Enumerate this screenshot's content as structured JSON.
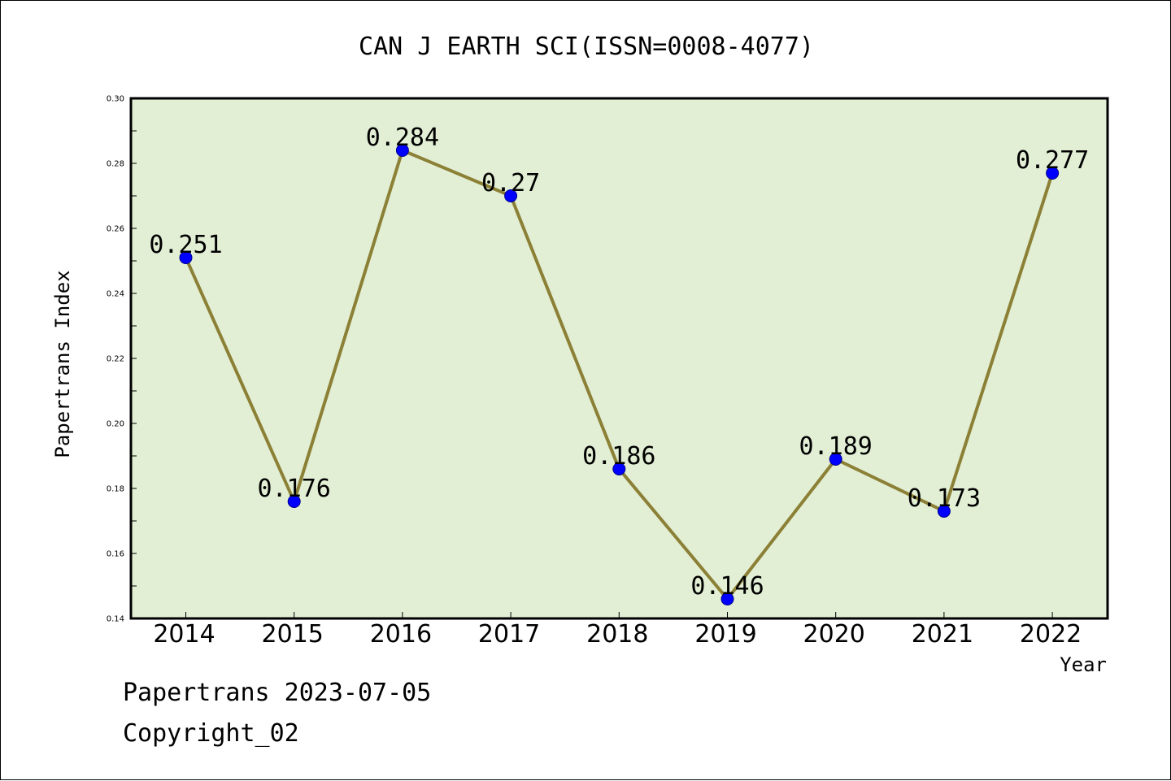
{
  "chart_data": {
    "type": "line",
    "title": "CAN J EARTH SCI(ISSN=0008-4077)",
    "xlabel": "Year",
    "ylabel": "Papertrans Index",
    "categories": [
      "2014",
      "2015",
      "2016",
      "2017",
      "2018",
      "2019",
      "2020",
      "2021",
      "2022"
    ],
    "series": [
      {
        "values": [
          0.251,
          0.176,
          0.284,
          0.27,
          0.186,
          0.146,
          0.189,
          0.173,
          0.277
        ],
        "labels": [
          "0.251",
          "0.176",
          "0.284",
          "0.27",
          "0.186",
          "0.146",
          "0.189",
          "0.173",
          "0.277"
        ]
      }
    ],
    "ylim": [
      0.14,
      0.3
    ],
    "yticks": [
      "0.14",
      "0.16",
      "0.18",
      "0.20",
      "0.22",
      "0.24",
      "0.26",
      "0.28",
      "0.30"
    ],
    "grid": false,
    "colors": {
      "line": "#8b8035",
      "marker": "#0000ff",
      "plot_background": "#e2efd5"
    }
  },
  "footer": {
    "line1": "Papertrans 2023-07-05",
    "line2": "Copyright_02"
  }
}
